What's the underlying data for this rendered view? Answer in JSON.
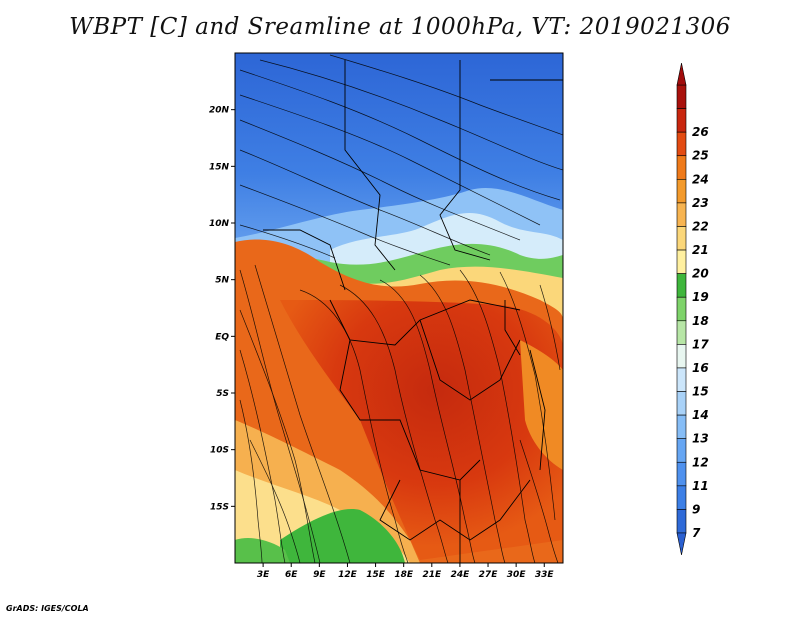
{
  "title": "WBPT [C] and Sreamline at 1000hPa, VT: 2019021306",
  "footer": "GrADS: IGES/COLA",
  "map": {
    "lat_labels": [
      "20N",
      "15N",
      "10N",
      "5N",
      "EQ",
      "5S",
      "10S",
      "15S"
    ],
    "lat_values": [
      20,
      15,
      10,
      5,
      0,
      -5,
      -10,
      -15
    ],
    "lon_labels": [
      "3E",
      "6E",
      "9E",
      "12E",
      "15E",
      "18E",
      "21E",
      "24E",
      "27E",
      "30E",
      "33E"
    ],
    "lon_values": [
      3,
      6,
      9,
      12,
      15,
      18,
      21,
      24,
      27,
      30,
      33
    ],
    "lon_range": [
      0,
      35
    ],
    "lat_range": [
      -20,
      25
    ]
  },
  "colorbar": {
    "labels": [
      "7",
      "9",
      "11",
      "12",
      "13",
      "14",
      "15",
      "16",
      "17",
      "18",
      "19",
      "20",
      "21",
      "22",
      "23",
      "24",
      "25",
      "26"
    ],
    "colors": [
      "#2f6ad8",
      "#3c7fe6",
      "#4f91ee",
      "#66a6f3",
      "#86bdf6",
      "#a9d2f8",
      "#cce6fb",
      "#e8f6f0",
      "#b7e6a6",
      "#7ed36a",
      "#3fb63c",
      "#fff0a0",
      "#fbd77a",
      "#f7b451",
      "#f39a2c",
      "#ef7a1a",
      "#e34b12",
      "#c8260e",
      "#a9110c"
    ],
    "arrow_low": "#2a5fd0",
    "arrow_high": "#a10c0c"
  }
}
